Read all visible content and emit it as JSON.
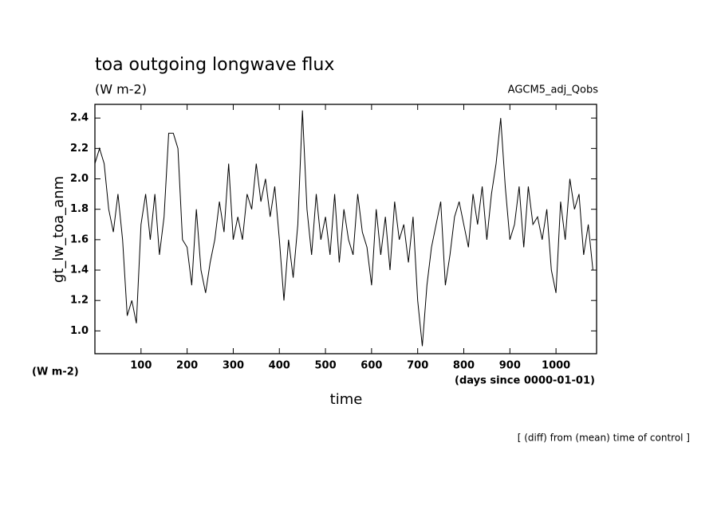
{
  "chart_data": {
    "type": "line",
    "title": "toa outgoing longwave flux",
    "subtitle": "(W m-2)",
    "experiment": "AGCM5_adj_Qobs",
    "y_label": "gt_lw_toa_anm",
    "y_units": "(W m-2)",
    "x_units": "(days since 0000-01-01)",
    "x_label": "time",
    "footnote": "[ (diff) from (mean) time of control ]",
    "xlim": [
      0,
      1088
    ],
    "ylim": [
      0.85,
      2.49
    ],
    "xticks": [
      100,
      200,
      300,
      400,
      500,
      600,
      700,
      800,
      900,
      1000
    ],
    "yticks": [
      {
        "value": 1.0,
        "label": "1.0"
      },
      1.2,
      1.4,
      1.6,
      1.8,
      {
        "value": 2.0,
        "label": "2.0"
      },
      2.2,
      2.4
    ],
    "x": [
      0,
      10,
      20,
      30,
      40,
      50,
      60,
      70,
      80,
      90,
      100,
      110,
      120,
      130,
      140,
      150,
      160,
      170,
      180,
      190,
      200,
      210,
      220,
      230,
      240,
      250,
      260,
      270,
      280,
      290,
      300,
      310,
      320,
      330,
      340,
      350,
      360,
      370,
      380,
      390,
      400,
      410,
      420,
      430,
      440,
      450,
      460,
      470,
      480,
      490,
      500,
      510,
      520,
      530,
      540,
      550,
      560,
      570,
      580,
      590,
      600,
      610,
      620,
      630,
      640,
      650,
      660,
      670,
      680,
      690,
      700,
      710,
      720,
      730,
      740,
      750,
      760,
      770,
      780,
      790,
      800,
      810,
      820,
      830,
      840,
      850,
      860,
      870,
      880,
      890,
      900,
      910,
      920,
      930,
      940,
      950,
      960,
      970,
      980,
      990,
      1000,
      1010,
      1020,
      1030,
      1040,
      1050,
      1060,
      1070,
      1080
    ],
    "series": [
      {
        "color": "#000000",
        "values": [
          2.1,
          2.2,
          2.1,
          1.8,
          1.65,
          1.9,
          1.6,
          1.1,
          1.2,
          1.05,
          1.7,
          1.9,
          1.6,
          1.9,
          1.5,
          1.75,
          2.3,
          2.3,
          2.2,
          1.6,
          1.55,
          1.3,
          1.8,
          1.4,
          1.25,
          1.45,
          1.6,
          1.85,
          1.65,
          2.1,
          1.6,
          1.75,
          1.6,
          1.9,
          1.8,
          2.1,
          1.85,
          2.0,
          1.75,
          1.95,
          1.6,
          1.2,
          1.6,
          1.35,
          1.7,
          2.45,
          1.8,
          1.5,
          1.9,
          1.6,
          1.75,
          1.5,
          1.9,
          1.45,
          1.8,
          1.6,
          1.5,
          1.9,
          1.65,
          1.55,
          1.3,
          1.8,
          1.5,
          1.75,
          1.4,
          1.85,
          1.6,
          1.7,
          1.45,
          1.75,
          1.2,
          0.9,
          1.3,
          1.55,
          1.7,
          1.85,
          1.3,
          1.5,
          1.75,
          1.85,
          1.7,
          1.55,
          1.9,
          1.7,
          1.95,
          1.6,
          1.9,
          2.1,
          2.4,
          1.95,
          1.6,
          1.7,
          1.95,
          1.55,
          1.95,
          1.7,
          1.75,
          1.6,
          1.8,
          1.4,
          1.25,
          1.85,
          1.6,
          2.0,
          1.8,
          1.9,
          1.5,
          1.7,
          1.4
        ]
      }
    ]
  }
}
